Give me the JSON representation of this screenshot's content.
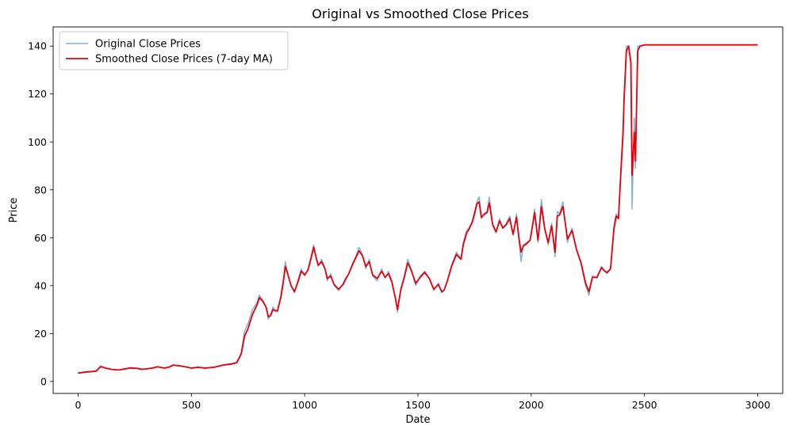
{
  "chart_data": {
    "type": "line",
    "title": "Original vs Smoothed Close Prices",
    "xlabel": "Date",
    "ylabel": "Price",
    "xlim": [
      -110,
      3110
    ],
    "ylim": [
      -5,
      148
    ],
    "xticks": [
      0,
      500,
      1000,
      1500,
      2000,
      2500,
      3000
    ],
    "yticks": [
      0,
      20,
      40,
      60,
      80,
      100,
      120,
      140
    ],
    "grid": false,
    "legend_position": "top-left",
    "series": [
      {
        "name": "Original Close Prices",
        "color": "#7fb3d9",
        "x": [
          0,
          10,
          30,
          60,
          80,
          100,
          120,
          150,
          180,
          200,
          230,
          260,
          280,
          300,
          330,
          350,
          380,
          400,
          420,
          450,
          480,
          500,
          530,
          560,
          600,
          640,
          680,
          700,
          710,
          720,
          735,
          750,
          770,
          790,
          800,
          815,
          830,
          840,
          850,
          860,
          870,
          880,
          895,
          905,
          915,
          925,
          940,
          955,
          970,
          985,
          1000,
          1015,
          1030,
          1040,
          1050,
          1060,
          1075,
          1090,
          1100,
          1115,
          1130,
          1150,
          1170,
          1180,
          1195,
          1210,
          1225,
          1240,
          1255,
          1270,
          1285,
          1300,
          1320,
          1340,
          1355,
          1370,
          1385,
          1400,
          1410,
          1415,
          1425,
          1440,
          1455,
          1470,
          1490,
          1510,
          1530,
          1550,
          1570,
          1590,
          1605,
          1615,
          1630,
          1650,
          1670,
          1690,
          1700,
          1715,
          1725,
          1740,
          1750,
          1760,
          1770,
          1780,
          1790,
          1805,
          1815,
          1830,
          1845,
          1860,
          1875,
          1890,
          1905,
          1920,
          1935,
          1945,
          1955,
          1965,
          1980,
          1995,
          2005,
          2015,
          2030,
          2045,
          2060,
          2075,
          2090,
          2105,
          2115,
          2125,
          2140,
          2160,
          2180,
          2200,
          2220,
          2240,
          2255,
          2270,
          2290,
          2310,
          2325,
          2335,
          2350,
          2365,
          2375,
          2385,
          2395,
          2405,
          2410,
          2420,
          2430,
          2440,
          2445,
          2455,
          2460,
          2470,
          2480,
          2500,
          2600,
          2700,
          2800,
          2900,
          3000
        ],
        "y": [
          4,
          3.5,
          4,
          4.2,
          4.5,
          6.5,
          5.5,
          5,
          4.8,
          5.2,
          5.8,
          5.5,
          5,
          5.2,
          5.8,
          6.2,
          5.5,
          6,
          7,
          6.5,
          6,
          5.5,
          6,
          5.5,
          6,
          7,
          7.5,
          8,
          10,
          12,
          21,
          24,
          30,
          33,
          36,
          34,
          31,
          26,
          28,
          31,
          30,
          29,
          36,
          42,
          50,
          45,
          40,
          37,
          42,
          47,
          44,
          47,
          53,
          57,
          52,
          48,
          51,
          47,
          42,
          45,
          40,
          38,
          41,
          43,
          45,
          49,
          52,
          56,
          53,
          47,
          51,
          44,
          42,
          47,
          43,
          46,
          42,
          35,
          29,
          33,
          39,
          44,
          51,
          47,
          40,
          44,
          46,
          43,
          38,
          41,
          37,
          38,
          42,
          49,
          54,
          51,
          58,
          63,
          64,
          67,
          71,
          75,
          77,
          68,
          70,
          71,
          77,
          65,
          62,
          68,
          64,
          66,
          69,
          61,
          70,
          60,
          50,
          57,
          58,
          59,
          65,
          72,
          58,
          76,
          64,
          57,
          66,
          52,
          71,
          70,
          75,
          58,
          64,
          55,
          49,
          40,
          36,
          44,
          43,
          48,
          46,
          45,
          47,
          65,
          70,
          68,
          88,
          105,
          120,
          140,
          140,
          132,
          72,
          110,
          89,
          140,
          140,
          140.5,
          140.5,
          140.5,
          140.5,
          140.5,
          140.5
        ]
      },
      {
        "name": "Smoothed Close Prices (7-day MA)",
        "color": "#e8000b",
        "x": [
          0,
          10,
          30,
          60,
          80,
          100,
          120,
          150,
          180,
          200,
          230,
          260,
          280,
          300,
          330,
          350,
          380,
          400,
          420,
          450,
          480,
          500,
          530,
          560,
          600,
          640,
          680,
          700,
          710,
          720,
          735,
          750,
          770,
          790,
          800,
          815,
          830,
          840,
          850,
          860,
          870,
          880,
          895,
          905,
          915,
          925,
          940,
          955,
          970,
          985,
          1000,
          1015,
          1030,
          1040,
          1050,
          1060,
          1075,
          1090,
          1100,
          1115,
          1130,
          1150,
          1170,
          1180,
          1195,
          1210,
          1225,
          1240,
          1255,
          1270,
          1285,
          1300,
          1320,
          1340,
          1355,
          1370,
          1385,
          1400,
          1410,
          1415,
          1425,
          1440,
          1455,
          1470,
          1490,
          1510,
          1530,
          1550,
          1570,
          1590,
          1605,
          1615,
          1630,
          1650,
          1670,
          1690,
          1700,
          1715,
          1725,
          1740,
          1750,
          1760,
          1770,
          1780,
          1790,
          1805,
          1815,
          1830,
          1845,
          1860,
          1875,
          1890,
          1905,
          1920,
          1935,
          1945,
          1955,
          1965,
          1980,
          1995,
          2005,
          2015,
          2030,
          2045,
          2060,
          2075,
          2090,
          2105,
          2115,
          2125,
          2140,
          2160,
          2180,
          2200,
          2220,
          2240,
          2255,
          2270,
          2290,
          2310,
          2325,
          2335,
          2350,
          2365,
          2375,
          2385,
          2395,
          2405,
          2410,
          2420,
          2430,
          2440,
          2445,
          2455,
          2460,
          2470,
          2480,
          2500,
          2600,
          2700,
          2800,
          2900,
          3000
        ],
        "y": [
          3.5,
          3.6,
          3.9,
          4.1,
          4.3,
          6.2,
          5.6,
          5,
          4.8,
          5.1,
          5.6,
          5.5,
          5.1,
          5.2,
          5.6,
          6.1,
          5.6,
          5.9,
          6.8,
          6.5,
          6,
          5.6,
          5.9,
          5.6,
          5.9,
          6.8,
          7.3,
          7.8,
          9.5,
          11.5,
          19,
          22,
          28,
          32,
          35,
          33.5,
          31,
          27,
          27.5,
          30,
          29.5,
          29.5,
          35,
          41,
          48,
          45,
          40,
          37.5,
          41.5,
          46,
          44.5,
          46.5,
          52,
          56,
          52,
          48.5,
          50,
          47,
          43,
          44,
          40.5,
          38.5,
          40.5,
          42.5,
          45,
          48.5,
          51.5,
          54.5,
          52.5,
          48,
          50,
          44.5,
          43,
          46,
          43.5,
          45,
          41.5,
          35,
          30,
          33,
          38.5,
          43.5,
          49.5,
          46.5,
          41,
          43.5,
          45.5,
          43,
          38.5,
          40.5,
          37.5,
          38,
          42,
          48.5,
          53,
          51,
          57,
          62,
          63.5,
          66.5,
          70,
          74,
          75,
          68.5,
          69.5,
          70.5,
          74.5,
          65.5,
          62.5,
          67,
          64,
          65.5,
          68,
          61.5,
          68.5,
          60.5,
          54,
          56.5,
          57.5,
          59,
          64.5,
          70.5,
          59,
          73,
          63.5,
          58,
          65,
          54,
          69,
          69.5,
          73,
          59.5,
          63,
          55,
          49.5,
          41,
          37.5,
          43.5,
          43.5,
          47.5,
          46,
          45.5,
          47,
          63.5,
          69,
          68,
          86,
          103,
          118,
          138,
          140,
          133,
          86,
          104,
          92,
          138,
          140,
          140.5,
          140.5,
          140.5,
          140.5,
          140.5,
          140.5
        ]
      }
    ]
  }
}
